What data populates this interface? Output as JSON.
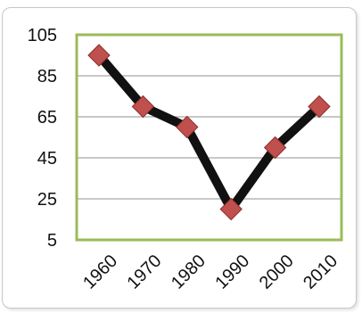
{
  "chart_data": {
    "type": "line",
    "categories": [
      "1960",
      "1970",
      "1980",
      "1990",
      "2000",
      "2010"
    ],
    "series": [
      {
        "values": [
          95,
          70,
          60,
          20,
          50,
          70
        ]
      }
    ],
    "ylim": [
      5,
      105
    ],
    "yticks": [
      "105",
      "85",
      "65",
      "45",
      "25",
      "5"
    ],
    "grid": true,
    "colors": {
      "line": "#111111",
      "marker": "#c0504d",
      "plot_border": "#9bbb59",
      "grid": "#a6a6a6"
    }
  }
}
